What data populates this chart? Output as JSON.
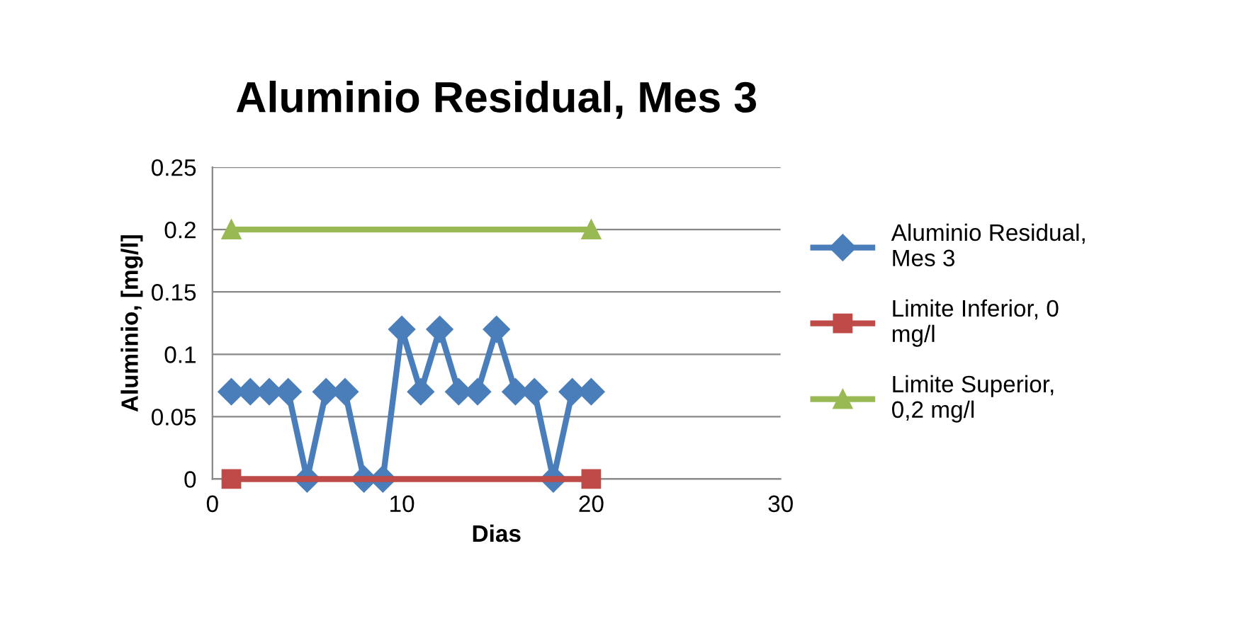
{
  "chart_data": {
    "type": "line",
    "title": "Aluminio Residual, Mes 3",
    "xlabel": "Dias",
    "ylabel": "Aluminio, [mg/l]",
    "xlim": [
      0,
      30
    ],
    "xticks": [
      0,
      10,
      20,
      30
    ],
    "ylim": [
      0,
      0.25
    ],
    "yticks": [
      0,
      0.05,
      0.1,
      0.15,
      0.2,
      0.25
    ],
    "grid": "y",
    "legend": "right",
    "series": [
      {
        "name": "Aluminio Residual, Mes 3",
        "color": "#4a7ebb",
        "marker": "diamond",
        "x": [
          1,
          2,
          3,
          4,
          5,
          6,
          7,
          8,
          9,
          10,
          11,
          12,
          13,
          14,
          15,
          16,
          17,
          18,
          19,
          20
        ],
        "values": [
          0.07,
          0.07,
          0.07,
          0.07,
          0,
          0.07,
          0.07,
          0,
          0,
          0.12,
          0.07,
          0.12,
          0.07,
          0.07,
          0.12,
          0.07,
          0.07,
          0,
          0.07,
          0.07
        ]
      },
      {
        "name": "Limite Inferior, 0 mg/l",
        "color": "#be4b48",
        "marker": "square",
        "x": [
          1,
          20
        ],
        "values": [
          0,
          0
        ]
      },
      {
        "name": "Limite Superior, 0,2 mg/l",
        "color": "#98b954",
        "marker": "triangle",
        "x": [
          1,
          20
        ],
        "values": [
          0.2,
          0.2
        ]
      }
    ]
  }
}
